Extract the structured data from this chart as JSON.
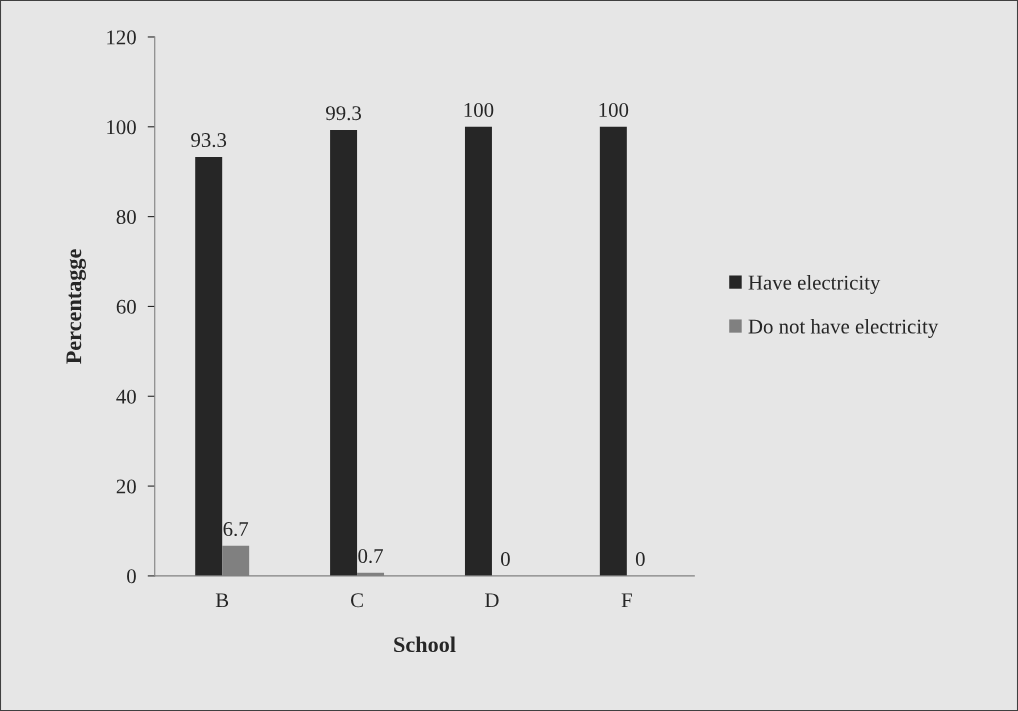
{
  "chart_data": {
    "type": "bar",
    "xlabel": "School",
    "ylabel": "Percentagge",
    "categories": [
      "B",
      "C",
      "D",
      "F"
    ],
    "series": [
      {
        "name": "Have electricity",
        "color": "#262626",
        "values": [
          93.3,
          99.3,
          100,
          100
        ]
      },
      {
        "name": "Do not have electricity",
        "color": "#808080",
        "values": [
          6.7,
          0.7,
          0,
          0
        ]
      }
    ],
    "ylim": [
      0,
      120
    ],
    "yticks": [
      0,
      20,
      40,
      60,
      80,
      100,
      120
    ],
    "grid": false,
    "legend": "right",
    "data_labels": true
  }
}
